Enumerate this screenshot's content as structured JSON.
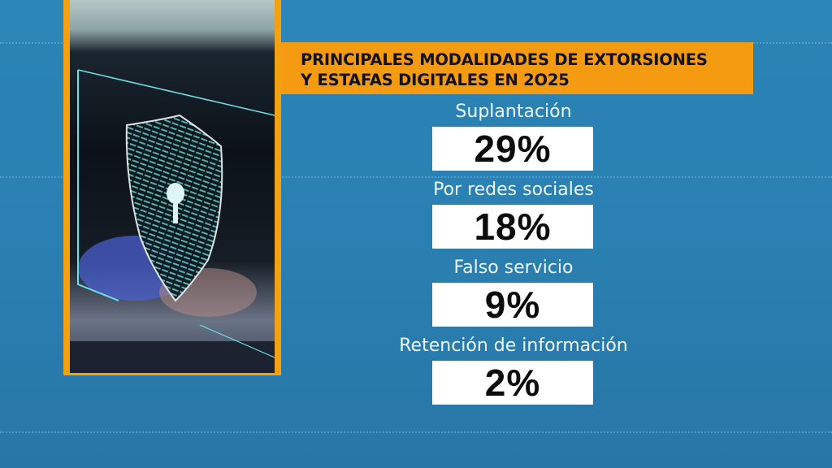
{
  "title": {
    "line1": "PRINCIPALES MODALIDADES DE EXTORSIONES",
    "line2": "Y ESTAFAS DIGITALES EN 2O25"
  },
  "items": [
    {
      "label": "Suplantación",
      "value": "29%"
    },
    {
      "label": "Por redes sociales",
      "value": "18%"
    },
    {
      "label": "Falso servicio",
      "value": "9%"
    },
    {
      "label": "Retención de información",
      "value": "2%"
    }
  ],
  "colors": {
    "background": "#2a80b2",
    "accent": "#f49b12",
    "box": "#ffffff",
    "label_text": "#eef8ff"
  },
  "photo": {
    "icon": "shield-lock-icon"
  }
}
